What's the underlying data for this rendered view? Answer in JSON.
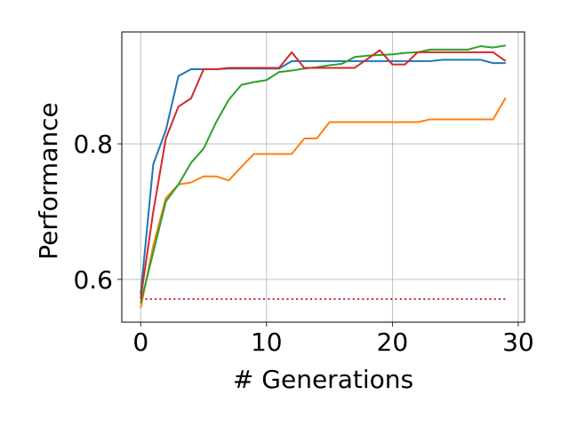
{
  "chart_data": {
    "type": "line",
    "xlabel": "# Generations",
    "ylabel": "Performance",
    "xlim": [
      -1.5,
      30.5
    ],
    "ylim": [
      0.537,
      0.965
    ],
    "xticks": [
      0,
      10,
      20,
      30
    ],
    "xtick_labels": [
      "0",
      "10",
      "20",
      "30"
    ],
    "yticks": [
      0.6,
      0.8
    ],
    "ytick_labels": [
      "0.6",
      "0.8"
    ],
    "grid": true,
    "x": [
      0,
      1,
      2,
      3,
      4,
      5,
      6,
      7,
      8,
      9,
      10,
      11,
      12,
      13,
      14,
      15,
      16,
      17,
      18,
      19,
      20,
      21,
      22,
      23,
      24,
      25,
      26,
      27,
      28,
      29
    ],
    "series": [
      {
        "color": "#1f77b4",
        "style": "solid",
        "values": [
          0.578,
          0.77,
          0.82,
          0.9,
          0.91,
          0.91,
          0.91,
          0.911,
          0.911,
          0.911,
          0.911,
          0.911,
          0.922,
          0.922,
          0.922,
          0.922,
          0.922,
          0.922,
          0.922,
          0.922,
          0.922,
          0.922,
          0.922,
          0.922,
          0.924,
          0.924,
          0.924,
          0.924,
          0.919,
          0.919
        ]
      },
      {
        "color": "#ff7f0e",
        "style": "solid",
        "values": [
          0.558,
          0.65,
          0.72,
          0.74,
          0.743,
          0.752,
          0.752,
          0.746,
          0.766,
          0.785,
          0.785,
          0.785,
          0.785,
          0.808,
          0.808,
          0.832,
          0.832,
          0.832,
          0.832,
          0.832,
          0.832,
          0.832,
          0.832,
          0.836,
          0.836,
          0.836,
          0.836,
          0.836,
          0.836,
          0.868
        ]
      },
      {
        "color": "#2ca02c",
        "style": "solid",
        "values": [
          0.565,
          0.64,
          0.715,
          0.74,
          0.772,
          0.793,
          0.832,
          0.865,
          0.887,
          0.891,
          0.894,
          0.906,
          0.908,
          0.911,
          0.913,
          0.916,
          0.918,
          0.928,
          0.93,
          0.931,
          0.932,
          0.934,
          0.935,
          0.939,
          0.939,
          0.939,
          0.939,
          0.944,
          0.942,
          0.945
        ]
      },
      {
        "color": "#d62728",
        "style": "solid",
        "values": [
          0.572,
          0.7,
          0.808,
          0.855,
          0.867,
          0.91,
          0.91,
          0.912,
          0.912,
          0.912,
          0.912,
          0.912,
          0.935,
          0.912,
          0.912,
          0.912,
          0.912,
          0.912,
          0.925,
          0.938,
          0.917,
          0.917,
          0.935,
          0.935,
          0.935,
          0.935,
          0.935,
          0.935,
          0.935,
          0.922
        ]
      },
      {
        "color": "#d62728",
        "style": "dotted",
        "values": [
          0.571,
          0.571,
          0.571,
          0.571,
          0.571,
          0.571,
          0.571,
          0.571,
          0.571,
          0.571,
          0.571,
          0.571,
          0.571,
          0.571,
          0.571,
          0.571,
          0.571,
          0.571,
          0.571,
          0.571,
          0.571,
          0.571,
          0.571,
          0.571,
          0.571,
          0.571,
          0.571,
          0.571,
          0.571,
          0.571
        ]
      }
    ]
  }
}
